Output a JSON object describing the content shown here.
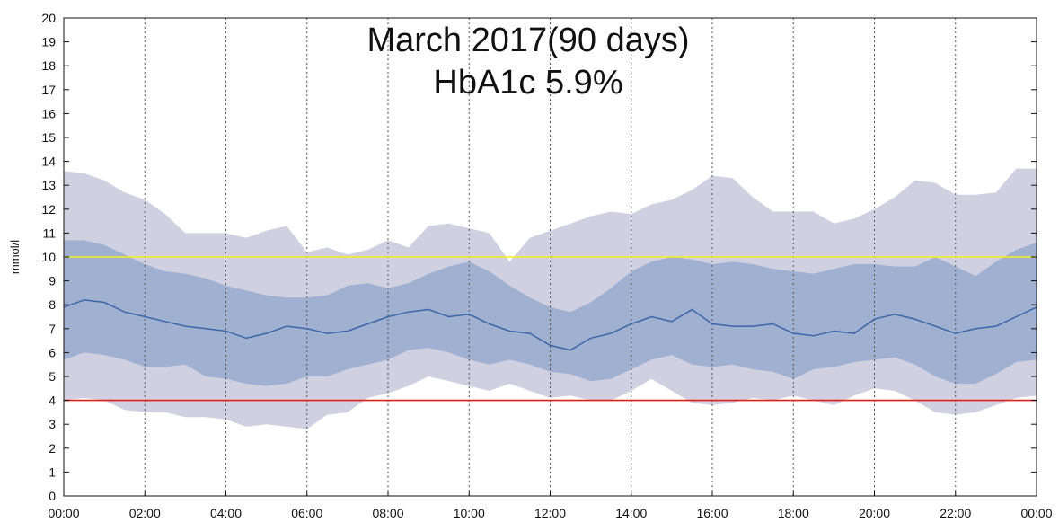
{
  "chart_data": {
    "type": "area",
    "title": "March 2017(90 days)",
    "subtitle": "HbA1c 5.9%",
    "xlabel": "",
    "ylabel": "mmol/l",
    "ylim": [
      0,
      20
    ],
    "xlim": [
      "00:00",
      "24:00"
    ],
    "x_ticks": [
      "00:00",
      "02:00",
      "04:00",
      "06:00",
      "08:00",
      "10:00",
      "12:00",
      "14:00",
      "16:00",
      "18:00",
      "20:00",
      "22:00",
      "00:00"
    ],
    "y_ticks": [
      0,
      1,
      2,
      3,
      4,
      5,
      6,
      7,
      8,
      9,
      10,
      11,
      12,
      13,
      14,
      15,
      16,
      17,
      18,
      19,
      20
    ],
    "grid": "vertical dotted lines at each 2-hour tick",
    "reference_lines": [
      {
        "y": 10,
        "color": "#f5ef1a"
      },
      {
        "y": 4,
        "color": "#e0201a"
      }
    ],
    "x_hours": [
      0,
      0.5,
      1,
      1.5,
      2,
      2.5,
      3,
      3.5,
      4,
      4.5,
      5,
      5.5,
      6,
      6.5,
      7,
      7.5,
      8,
      8.5,
      9,
      9.5,
      10,
      10.5,
      11,
      11.5,
      12,
      12.5,
      13,
      13.5,
      14,
      14.5,
      15,
      15.5,
      16,
      16.5,
      17,
      17.5,
      18,
      18.5,
      19,
      19.5,
      20,
      20.5,
      21,
      21.5,
      22,
      22.5,
      23,
      23.5,
      24
    ],
    "series": [
      {
        "role": "outer_upper",
        "color": "#d0d0e1",
        "values": [
          13.6,
          13.5,
          13.2,
          12.7,
          12.4,
          11.8,
          11.0,
          11.0,
          11.0,
          10.8,
          11.1,
          11.3,
          10.2,
          10.4,
          10.1,
          10.3,
          10.7,
          10.4,
          11.3,
          11.4,
          11.2,
          11.0,
          9.8,
          10.8,
          11.1,
          11.4,
          11.7,
          11.9,
          11.8,
          12.2,
          12.4,
          12.8,
          13.4,
          13.3,
          12.5,
          11.9,
          11.9,
          11.9,
          11.4,
          11.6,
          12.0,
          12.5,
          13.2,
          13.1,
          12.6,
          12.6,
          12.7,
          13.7,
          13.7
        ]
      },
      {
        "role": "inner_upper",
        "color": "#9fb0d1",
        "values": [
          10.7,
          10.7,
          10.5,
          10.1,
          9.7,
          9.4,
          9.3,
          9.1,
          8.8,
          8.6,
          8.4,
          8.3,
          8.3,
          8.4,
          8.8,
          8.9,
          8.7,
          8.9,
          9.3,
          9.6,
          9.8,
          9.4,
          8.8,
          8.3,
          7.9,
          7.7,
          8.1,
          8.7,
          9.4,
          9.8,
          10.0,
          9.9,
          9.7,
          9.8,
          9.7,
          9.5,
          9.4,
          9.3,
          9.5,
          9.7,
          9.7,
          9.6,
          9.6,
          10.0,
          9.6,
          9.2,
          9.8,
          10.3,
          10.6
        ]
      },
      {
        "role": "median",
        "color": "#3d66a8",
        "values": [
          7.9,
          8.2,
          8.1,
          7.7,
          7.5,
          7.3,
          7.1,
          7.0,
          6.9,
          6.6,
          6.8,
          7.1,
          7.0,
          6.8,
          6.9,
          7.2,
          7.5,
          7.7,
          7.8,
          7.5,
          7.6,
          7.2,
          6.9,
          6.8,
          6.3,
          6.1,
          6.6,
          6.8,
          7.2,
          7.5,
          7.3,
          7.8,
          7.2,
          7.1,
          7.1,
          7.2,
          6.8,
          6.7,
          6.9,
          6.8,
          7.4,
          7.6,
          7.4,
          7.1,
          6.8,
          7.0,
          7.1,
          7.5,
          7.9
        ]
      },
      {
        "role": "inner_lower",
        "color": "#9fb0d1",
        "values": [
          5.7,
          6.0,
          5.9,
          5.7,
          5.4,
          5.4,
          5.5,
          5.0,
          4.9,
          4.7,
          4.6,
          4.7,
          5.0,
          5.0,
          5.3,
          5.5,
          5.7,
          6.1,
          6.2,
          6.0,
          5.7,
          5.5,
          5.7,
          5.5,
          5.2,
          5.1,
          4.8,
          4.9,
          5.3,
          5.7,
          5.9,
          5.5,
          5.4,
          5.5,
          5.3,
          5.2,
          4.9,
          5.3,
          5.4,
          5.6,
          5.7,
          5.8,
          5.5,
          5.0,
          4.7,
          4.7,
          5.1,
          5.6,
          5.7
        ]
      },
      {
        "role": "outer_lower",
        "color": "#d0d0e1",
        "values": [
          4.0,
          4.1,
          4.0,
          3.6,
          3.5,
          3.5,
          3.3,
          3.3,
          3.2,
          2.9,
          3.0,
          2.9,
          2.8,
          3.4,
          3.5,
          4.1,
          4.3,
          4.6,
          5.0,
          4.8,
          4.6,
          4.4,
          4.7,
          4.4,
          4.1,
          4.2,
          4.0,
          4.0,
          4.4,
          4.9,
          4.4,
          3.9,
          3.8,
          3.9,
          4.1,
          4.0,
          4.2,
          4.0,
          3.8,
          4.2,
          4.5,
          4.4,
          4.0,
          3.5,
          3.4,
          3.5,
          3.8,
          4.1,
          4.2
        ]
      }
    ]
  }
}
